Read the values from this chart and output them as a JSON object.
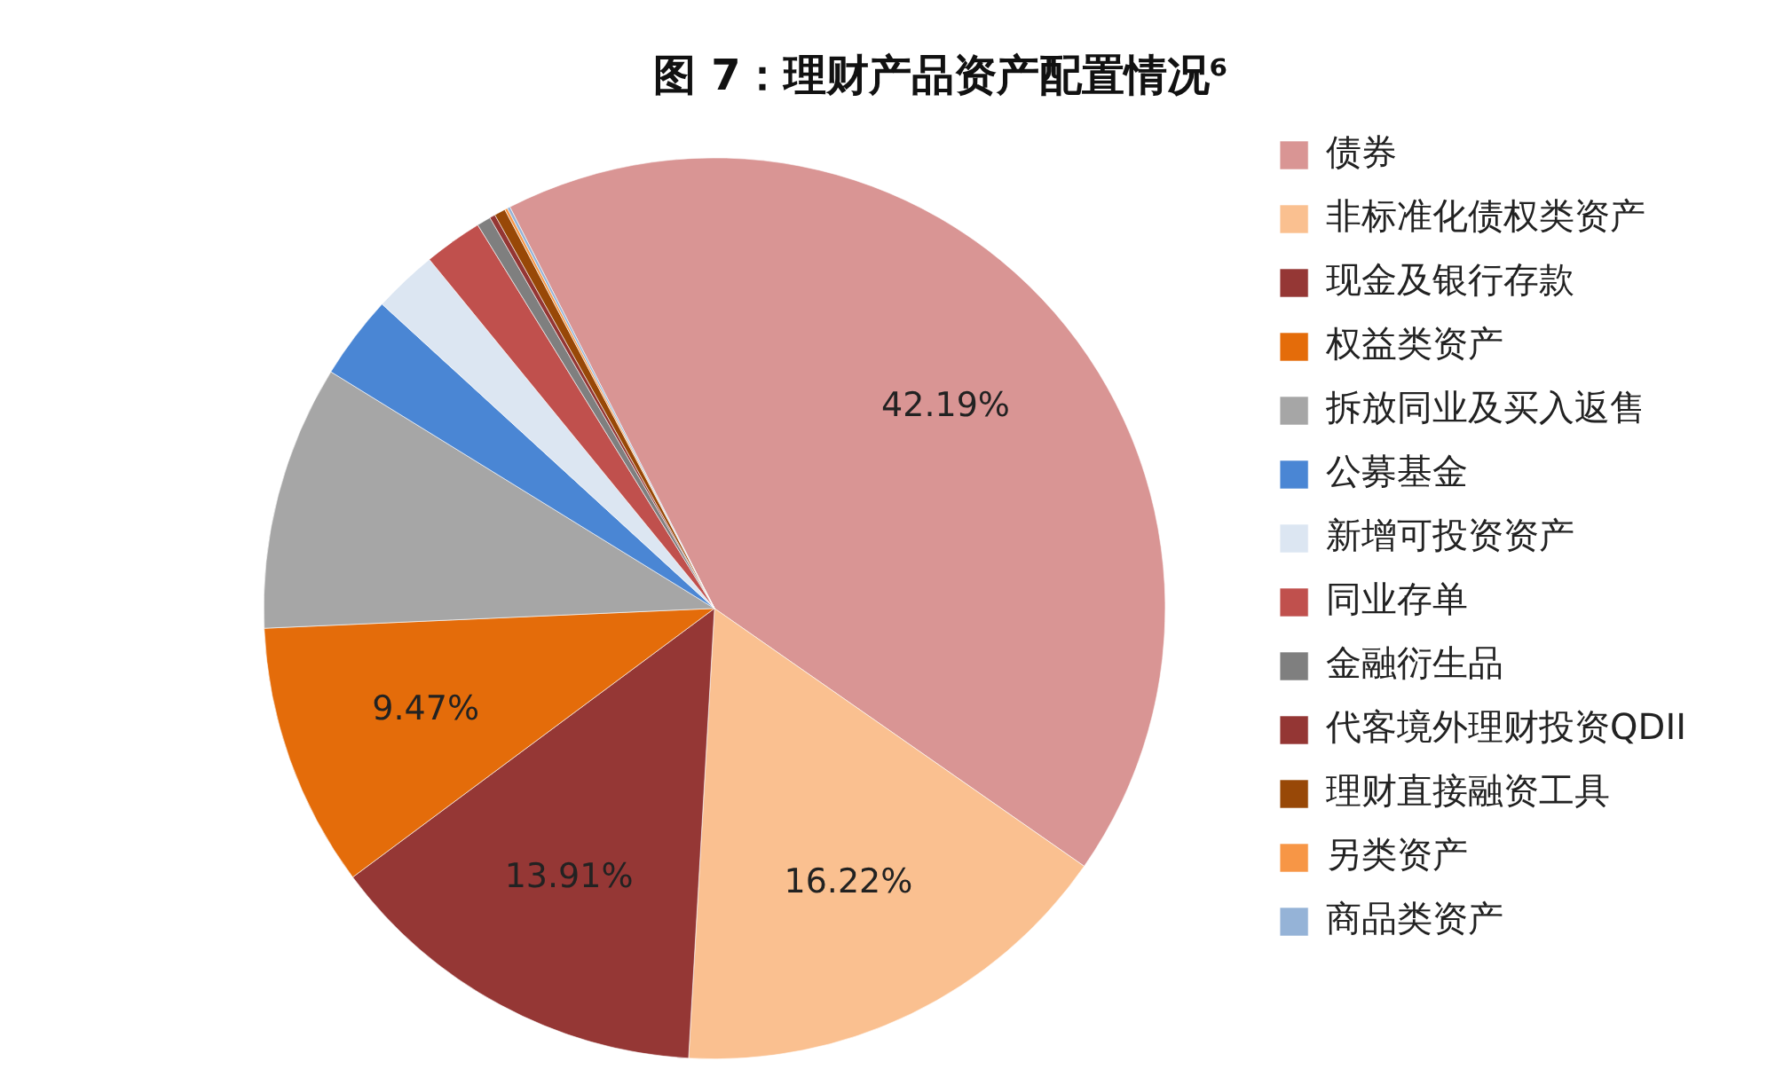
{
  "chart_data": {
    "type": "pie",
    "title": "图 7：理财产品资产配置情况⁶",
    "categories": [
      "债券",
      "非标准化债权类资产",
      "现金及银行存款",
      "权益类资产",
      "拆放同业及买入返售",
      "公募基金",
      "新增可投资资产",
      "同业存单",
      "金融衍生品",
      "代客境外理财投资QDII",
      "理财直接融资工具",
      "另类资产",
      "商品类资产"
    ],
    "values": [
      42.19,
      16.22,
      13.91,
      9.47,
      9.5,
      3.0,
      2.3,
      2.1,
      0.5,
      0.2,
      0.4,
      0.1,
      0.1
    ],
    "colors": [
      "#d99594",
      "#fac090",
      "#953735",
      "#e46c0a",
      "#a6a6a6",
      "#4a86d4",
      "#dce6f2",
      "#c0504d",
      "#7f7f7f",
      "#943634",
      "#984807",
      "#f79646",
      "#95b3d7"
    ],
    "value_labels": [
      "42.19%",
      "16.22%",
      "13.91%",
      "9.47%",
      null,
      null,
      null,
      null,
      null,
      null,
      null,
      null,
      null
    ],
    "legend": "right"
  }
}
